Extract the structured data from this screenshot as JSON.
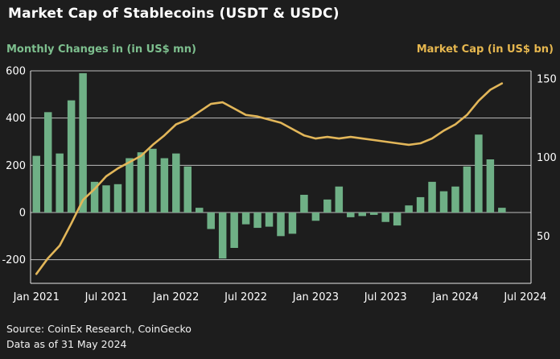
{
  "page": {
    "background": "#1d1d1d"
  },
  "header": {
    "title": "Market Cap of Stablecoins (USDT & USDC)"
  },
  "footer": {
    "source": "Source: CoinEx Research, CoinGecko",
    "as_of": "Data as of 31 May 2024"
  },
  "chart_data": {
    "type": "combo-bar-line",
    "title": "Market Cap of Stablecoins (USDT & USDC)",
    "grid": true,
    "legend_position": "top",
    "categories": [
      "Jan 2021",
      "Feb 2021",
      "Mar 2021",
      "Apr 2021",
      "May 2021",
      "Jun 2021",
      "Jul 2021",
      "Aug 2021",
      "Sep 2021",
      "Oct 2021",
      "Nov 2021",
      "Dec 2021",
      "Jan 2022",
      "Feb 2022",
      "Mar 2022",
      "Apr 2022",
      "May 2022",
      "Jun 2022",
      "Jul 2022",
      "Aug 2022",
      "Sep 2022",
      "Oct 2022",
      "Nov 2022",
      "Dec 2022",
      "Jan 2023",
      "Feb 2023",
      "Mar 2023",
      "Apr 2023",
      "May 2023",
      "Jun 2023",
      "Jul 2023",
      "Aug 2023",
      "Sep 2023",
      "Oct 2023",
      "Nov 2023",
      "Dec 2023",
      "Jan 2024",
      "Feb 2024",
      "Mar 2024",
      "Apr 2024",
      "May 2024"
    ],
    "x_tick_labels": [
      "Jan 2021",
      "Jul 2021",
      "Jan 2022",
      "Jul 2022",
      "Jan 2023",
      "Jul 2023",
      "Jan 2024",
      "Jul 2024"
    ],
    "x_tick_month_indices": [
      0,
      6,
      12,
      18,
      24,
      30,
      36,
      42
    ],
    "left_axis": {
      "label": "Monthly Changes in (in US$ mn)",
      "color": "#7dbf8e",
      "ticks": [
        600,
        400,
        200,
        0,
        -200
      ],
      "range": [
        -300,
        600
      ]
    },
    "right_axis": {
      "label": "Market Cap (in US$ bn)",
      "color": "#e6b74f",
      "ticks": [
        150,
        100,
        50
      ],
      "range": [
        20,
        155
      ]
    },
    "series": [
      {
        "name": "Monthly Changes in (in US$ mn)",
        "type": "bar",
        "axis": "left",
        "color": "#6fb086",
        "values": [
          240,
          425,
          250,
          475,
          590,
          130,
          115,
          120,
          230,
          255,
          270,
          230,
          250,
          195,
          20,
          -70,
          -195,
          -150,
          -50,
          -65,
          -60,
          -100,
          -90,
          75,
          -35,
          55,
          110,
          -20,
          -15,
          -10,
          -40,
          -55,
          30,
          65,
          130,
          90,
          110,
          195,
          330,
          225,
          20
        ]
      },
      {
        "name": "Market Cap (in US$ bn)",
        "type": "line",
        "axis": "right",
        "color": "#e2b659",
        "values": [
          26,
          36,
          44,
          58,
          73,
          80,
          88,
          93,
          97,
          101,
          108,
          114,
          121,
          124,
          129,
          134,
          135,
          131,
          127,
          126,
          124,
          122,
          118,
          114,
          112,
          113,
          112,
          113,
          112,
          111,
          110,
          109,
          108,
          109,
          112,
          117,
          121,
          127,
          136,
          143,
          147
        ]
      }
    ],
    "grid_color": "#d9d9d9"
  }
}
